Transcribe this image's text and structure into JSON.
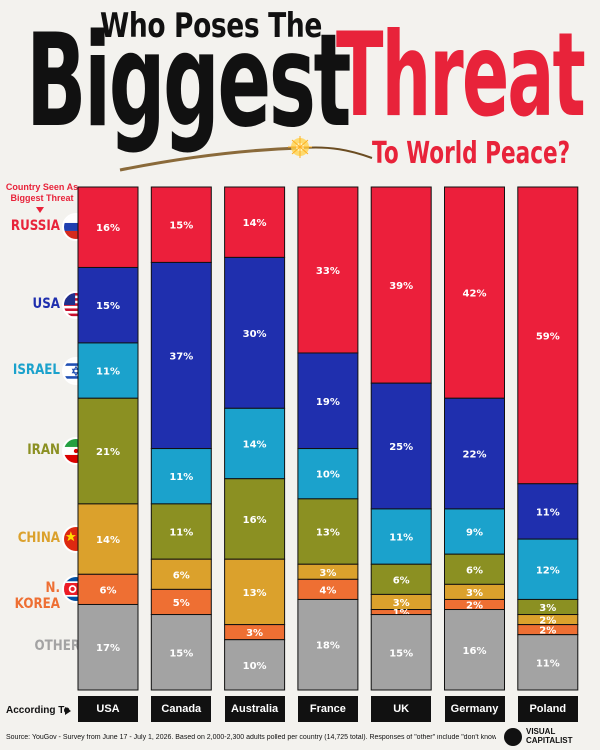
{
  "title": {
    "line1": "Who Poses The",
    "big": "Biggest",
    "threat": "Threat",
    "sub": "To World Peace?"
  },
  "legend_heading": "Country Seen As Biggest Threat",
  "according_to": "According To",
  "source": "Source: YouGov - Survey from June 17 - July 1, 2026. Based on 2,000-2,300 adults polled per country (14,725 total). Responses of \"other\" include \"don't know\"",
  "logo": {
    "line1": "VISUAL",
    "line2": "CAPITALIST"
  },
  "colors": {
    "russia": "#ec1f3b",
    "usa": "#1f2fae",
    "israel": "#1ba2cc",
    "iran": "#8b9022",
    "china": "#dba12c",
    "north_korea": "#ee6f33",
    "other": "#a3a3a3"
  },
  "category_labels": [
    {
      "key": "russia",
      "label": "RUSSIA",
      "color": "#e8233a",
      "flag": "russia-flag-icon"
    },
    {
      "key": "usa",
      "label": "USA",
      "color": "#1f2fae",
      "flag": "usa-flag-icon"
    },
    {
      "key": "israel",
      "label": "ISRAEL",
      "color": "#1ba2cc",
      "flag": "israel-flag-icon"
    },
    {
      "key": "iran",
      "label": "IRAN",
      "color": "#8b9022",
      "flag": "iran-flag-icon"
    },
    {
      "key": "china",
      "label": "CHINA",
      "color": "#dba12c",
      "flag": "china-flag-icon"
    },
    {
      "key": "north_korea",
      "label": "N. KOREA",
      "color": "#ee6f33",
      "flag": "north-korea-flag-icon"
    },
    {
      "key": "other",
      "label": "OTHER",
      "color": "#a3a3a3",
      "flag": ""
    }
  ],
  "chart_data": {
    "type": "bar",
    "stacked": true,
    "title": "Who Poses The Biggest Threat To World Peace?",
    "categories": [
      "USA",
      "Canada",
      "Australia",
      "France",
      "UK",
      "Germany",
      "Poland"
    ],
    "value_suffix": "%",
    "series": [
      {
        "name": "RUSSIA",
        "values": [
          16,
          15,
          14,
          33,
          39,
          42,
          59
        ]
      },
      {
        "name": "USA",
        "values": [
          15,
          37,
          30,
          19,
          25,
          22,
          11
        ]
      },
      {
        "name": "ISRAEL",
        "values": [
          11,
          11,
          14,
          10,
          11,
          9,
          12
        ]
      },
      {
        "name": "IRAN",
        "values": [
          21,
          11,
          16,
          13,
          6,
          6,
          3
        ]
      },
      {
        "name": "CHINA",
        "values": [
          14,
          6,
          13,
          3,
          3,
          3,
          2
        ]
      },
      {
        "name": "N. KOREA",
        "values": [
          6,
          5,
          3,
          4,
          1,
          2,
          2
        ]
      },
      {
        "name": "OTHER",
        "values": [
          17,
          15,
          10,
          18,
          15,
          16,
          11
        ]
      }
    ],
    "ylim": [
      0,
      100
    ],
    "grid": false
  }
}
